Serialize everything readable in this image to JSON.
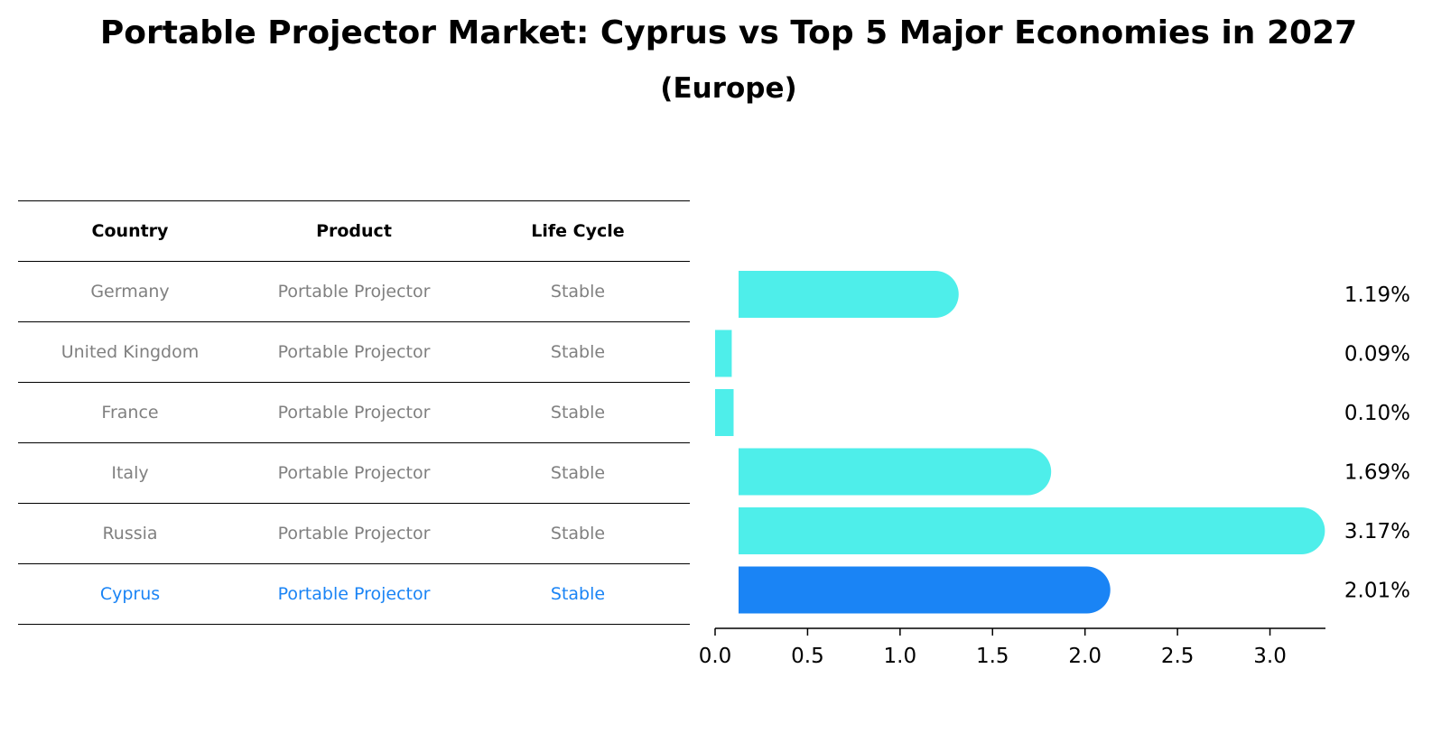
{
  "title": "Portable Projector Market: Cyprus vs Top 5 Major Economies in 2027",
  "subtitle": "(Europe)",
  "table": {
    "headers": [
      "Country",
      "Product",
      "Life Cycle"
    ],
    "rows": [
      {
        "country": "Germany",
        "product": "Portable Projector",
        "life_cycle": "Stable"
      },
      {
        "country": "United Kingdom",
        "product": "Portable Projector",
        "life_cycle": "Stable"
      },
      {
        "country": "France",
        "product": "Portable Projector",
        "life_cycle": "Stable"
      },
      {
        "country": "Italy",
        "product": "Portable Projector",
        "life_cycle": "Stable"
      },
      {
        "country": "Russia",
        "product": "Portable Projector",
        "life_cycle": "Stable"
      },
      {
        "country": "Cyprus",
        "product": "Portable Projector",
        "life_cycle": "Stable"
      }
    ]
  },
  "colors": {
    "bar": "#4eeeea",
    "highlight": "#1a84f5",
    "muted_text": "#808080"
  },
  "chart_data": {
    "type": "bar",
    "orientation": "horizontal",
    "categories": [
      "Germany",
      "United Kingdom",
      "France",
      "Italy",
      "Russia",
      "Cyprus"
    ],
    "values": [
      1.19,
      0.09,
      0.1,
      1.69,
      3.17,
      2.01
    ],
    "value_labels": [
      "1.19%",
      "0.09%",
      "0.10%",
      "1.69%",
      "3.17%",
      "2.01%"
    ],
    "highlight": "Cyprus",
    "xlim": [
      0,
      3.3
    ],
    "xticks": [
      0.0,
      0.5,
      1.0,
      1.5,
      2.0,
      2.5,
      3.0
    ],
    "xtick_labels": [
      "0.0",
      "0.5",
      "1.0",
      "1.5",
      "2.0",
      "2.5",
      "3.0"
    ],
    "grid": false
  }
}
